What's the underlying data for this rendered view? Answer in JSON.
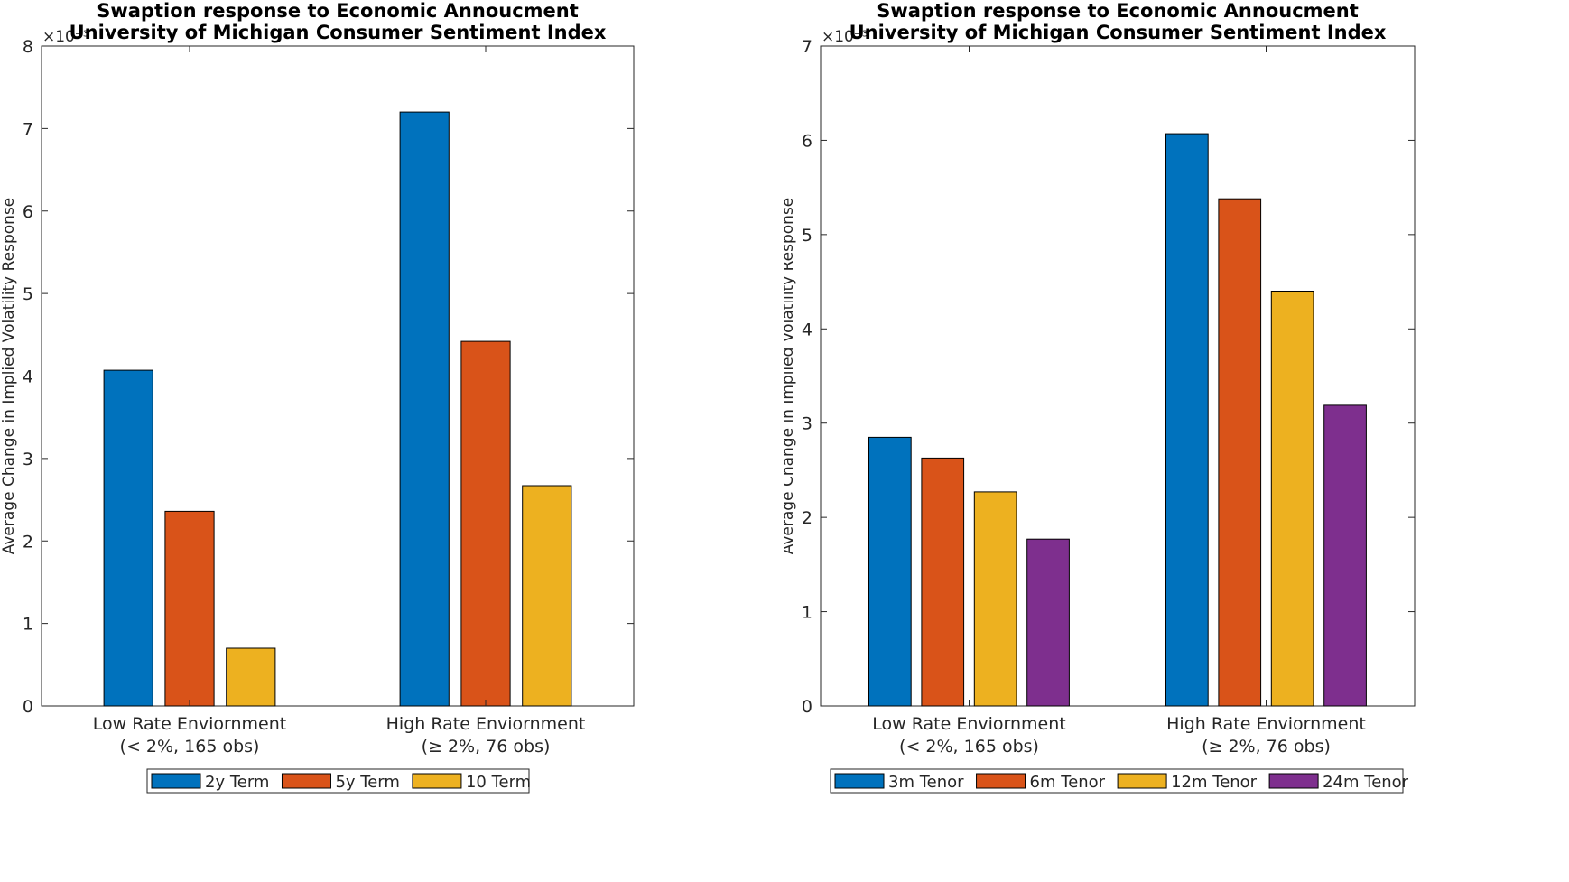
{
  "chart_data": [
    {
      "type": "bar",
      "title": "Swaption response to Economic Annoucment",
      "subtitle": "University of Michigan Consumer Sentiment Index",
      "ylabel": "Average Change in Implied Volatility Response",
      "y_multiplier": "×10⁻³",
      "ylim": [
        0,
        8
      ],
      "yticks": [
        "0",
        "1",
        "2",
        "3",
        "4",
        "5",
        "6",
        "7",
        "8"
      ],
      "grid": false,
      "legend_position": "bottom",
      "categories": [
        [
          "Low Rate Enviornment",
          "(< 2%, 165 obs)"
        ],
        [
          "High Rate Enviornment",
          "(≥ 2%, 76 obs)"
        ]
      ],
      "series": [
        {
          "name": "2y Term",
          "color": "#0072BD",
          "values": [
            4.07,
            7.2
          ]
        },
        {
          "name": "5y Term",
          "color": "#D95319",
          "values": [
            2.36,
            4.42
          ]
        },
        {
          "name": "10 Term",
          "color": "#EDB120",
          "values": [
            0.7,
            2.67
          ]
        }
      ]
    },
    {
      "type": "bar",
      "title": "Swaption response to Economic Annoucment",
      "subtitle": "University of Michigan Consumer Sentiment Index",
      "ylabel": "Average Change in Implied Volatility Response",
      "y_multiplier": "×10⁻³",
      "ylim": [
        0,
        7
      ],
      "yticks": [
        "0",
        "1",
        "2",
        "3",
        "4",
        "5",
        "6",
        "7"
      ],
      "grid": false,
      "legend_position": "bottom",
      "categories": [
        [
          "Low Rate Enviornment",
          "(< 2%, 165 obs)"
        ],
        [
          "High Rate Enviornment",
          "(≥ 2%, 76 obs)"
        ]
      ],
      "series": [
        {
          "name": "3m Tenor",
          "color": "#0072BD",
          "values": [
            2.85,
            6.07
          ]
        },
        {
          "name": "6m Tenor",
          "color": "#D95319",
          "values": [
            2.63,
            5.38
          ]
        },
        {
          "name": "12m Tenor",
          "color": "#EDB120",
          "values": [
            2.27,
            4.4
          ]
        },
        {
          "name": "24m Tenor",
          "color": "#7E2F8E",
          "values": [
            1.77,
            3.19
          ]
        }
      ]
    }
  ]
}
